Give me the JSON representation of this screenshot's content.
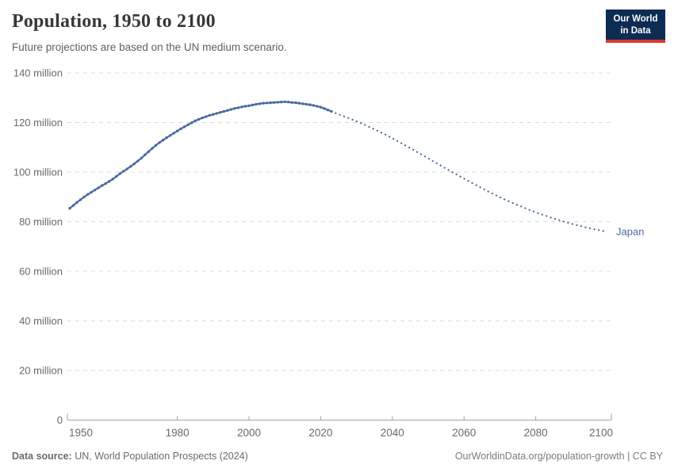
{
  "header": {
    "title": "Population, 1950 to 2100",
    "subtitle": "Future projections are based on the UN medium scenario.",
    "logo": {
      "line1": "Our World",
      "line2": "in Data"
    }
  },
  "footer": {
    "datasource_label": "Data source:",
    "datasource_value": " UN, World Population Prospects (2024)",
    "link_text": "OurWorldinData.org/population-growth",
    "separator": " | ",
    "license": "CC BY"
  },
  "colors": {
    "line": "#4c6aa0",
    "entity_label": "#4c6aa0",
    "grid": "#dcdcdc",
    "axis": "#a3a3a3",
    "tick_text": "#6a6a6a",
    "logo_bg": "#0d2c54",
    "logo_accent": "#d93a2e"
  },
  "chart_data": {
    "type": "line",
    "title": "Population, 1950 to 2100",
    "subtitle": "Future projections are based on the UN medium scenario.",
    "entity": "Japan",
    "unit": "million people",
    "xlabel": "",
    "ylabel": "",
    "xlim": [
      1948,
      2103
    ],
    "ylim": [
      0,
      145
    ],
    "grid": true,
    "legend": "entity label at right end of line",
    "xticks": [
      1950,
      1980,
      2000,
      2020,
      2040,
      2060,
      2080,
      2100
    ],
    "yticks": [
      0,
      20,
      40,
      60,
      80,
      100,
      120,
      140
    ],
    "ytick_suffix": " million",
    "series": [
      {
        "name": "Japan — observed (solid line with yearly markers)",
        "style": "solid_with_markers",
        "x": [
          1950,
          1951,
          1952,
          1953,
          1954,
          1955,
          1956,
          1957,
          1958,
          1959,
          1960,
          1961,
          1962,
          1963,
          1964,
          1965,
          1966,
          1967,
          1968,
          1969,
          1970,
          1971,
          1972,
          1973,
          1974,
          1975,
          1976,
          1977,
          1978,
          1979,
          1980,
          1981,
          1982,
          1983,
          1984,
          1985,
          1986,
          1987,
          1988,
          1989,
          1990,
          1991,
          1992,
          1993,
          1994,
          1995,
          1996,
          1997,
          1998,
          1999,
          2000,
          2001,
          2002,
          2003,
          2004,
          2005,
          2006,
          2007,
          2008,
          2009,
          2010,
          2011,
          2012,
          2013,
          2014,
          2015,
          2016,
          2017,
          2018,
          2019,
          2020,
          2021,
          2022,
          2023
        ],
        "values": [
          85.4,
          86.6,
          87.8,
          88.9,
          90.0,
          91.0,
          91.9,
          92.8,
          93.7,
          94.6,
          95.4,
          96.3,
          97.2,
          98.3,
          99.4,
          100.4,
          101.3,
          102.3,
          103.4,
          104.5,
          105.7,
          107.0,
          108.3,
          109.6,
          110.8,
          111.9,
          112.9,
          113.9,
          114.8,
          115.7,
          116.6,
          117.5,
          118.3,
          119.1,
          119.9,
          120.7,
          121.3,
          121.9,
          122.4,
          122.9,
          123.3,
          123.7,
          124.1,
          124.5,
          124.9,
          125.3,
          125.7,
          126.0,
          126.3,
          126.6,
          126.8,
          127.1,
          127.4,
          127.6,
          127.8,
          127.9,
          128.0,
          128.1,
          128.2,
          128.3,
          128.4,
          128.3,
          128.1,
          128.0,
          127.8,
          127.6,
          127.4,
          127.2,
          126.9,
          126.6,
          126.2,
          125.7,
          125.1,
          124.5
        ]
      },
      {
        "name": "Japan — UN medium projection (dotted line)",
        "style": "dotted",
        "x": [
          2023,
          2024,
          2025,
          2026,
          2027,
          2028,
          2029,
          2030,
          2031,
          2032,
          2033,
          2034,
          2035,
          2036,
          2037,
          2038,
          2039,
          2040,
          2041,
          2042,
          2043,
          2044,
          2045,
          2046,
          2047,
          2048,
          2049,
          2050,
          2051,
          2052,
          2053,
          2054,
          2055,
          2056,
          2057,
          2058,
          2059,
          2060,
          2061,
          2062,
          2063,
          2064,
          2065,
          2066,
          2067,
          2068,
          2069,
          2070,
          2071,
          2072,
          2073,
          2074,
          2075,
          2076,
          2077,
          2078,
          2079,
          2080,
          2081,
          2082,
          2083,
          2084,
          2085,
          2086,
          2087,
          2088,
          2089,
          2090,
          2091,
          2092,
          2093,
          2094,
          2095,
          2096,
          2097,
          2098,
          2099,
          2100
        ],
        "values": [
          124.5,
          123.9,
          123.3,
          122.8,
          122.2,
          121.7,
          121.1,
          120.5,
          119.9,
          119.3,
          118.6,
          118.0,
          117.3,
          116.6,
          115.9,
          115.2,
          114.4,
          113.7,
          112.9,
          112.1,
          111.3,
          110.5,
          109.7,
          108.9,
          108.1,
          107.2,
          106.4,
          105.6,
          104.7,
          103.9,
          103.1,
          102.2,
          101.4,
          100.6,
          99.8,
          99.0,
          98.2,
          97.4,
          96.6,
          95.8,
          95.0,
          94.3,
          93.5,
          92.8,
          92.0,
          91.3,
          90.6,
          89.9,
          89.2,
          88.6,
          87.9,
          87.3,
          86.7,
          86.1,
          85.5,
          84.9,
          84.4,
          83.8,
          83.3,
          82.8,
          82.3,
          81.8,
          81.3,
          80.9,
          80.4,
          80.0,
          79.6,
          79.2,
          78.8,
          78.4,
          78.1,
          77.7,
          77.4,
          77.1,
          76.8,
          76.5,
          76.2,
          76.0
        ]
      }
    ]
  }
}
